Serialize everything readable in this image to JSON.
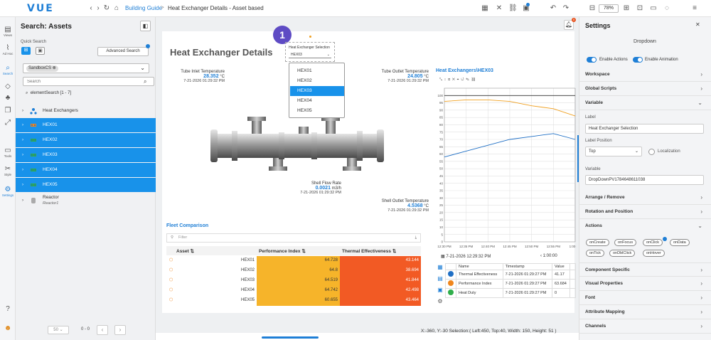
{
  "app": {
    "logo": "VUE"
  },
  "breadcrumb": {
    "home_link": "Building Guide",
    "separator": ">",
    "page": "Heat Exchanger Details - Asset based"
  },
  "toolbar": {
    "zoom": "78%"
  },
  "rail": [
    {
      "label": "Views",
      "icon": "views-icon"
    },
    {
      "label": "Ad Hoc",
      "icon": "adhoc-icon"
    },
    {
      "label": "Search",
      "icon": "search-icon"
    },
    {
      "label": "",
      "icon": "tag-icon"
    },
    {
      "label": "",
      "icon": "hierarchy-icon"
    },
    {
      "label": "",
      "icon": "copy-icon"
    },
    {
      "label": "",
      "icon": "expand-icon"
    },
    {
      "label": "Tools",
      "icon": "tools-icon"
    },
    {
      "label": "Style",
      "icon": "style-icon"
    },
    {
      "label": "Settings",
      "icon": "settings-icon"
    }
  ],
  "search_panel": {
    "title": "Search: Assets",
    "quick_search": "Quick Search",
    "advanced_search": "Advanced Search",
    "scope_chip": "SandboxCS",
    "search_placeholder": "Search",
    "element_search": "elementSearch [1 - 7]",
    "tree": [
      {
        "label": "Heat Exchangers",
        "selected": false
      },
      {
        "label": "HEX01",
        "selected": true
      },
      {
        "label": "HEX02",
        "selected": true
      },
      {
        "label": "HEX03",
        "selected": true
      },
      {
        "label": "HEX04",
        "selected": true
      },
      {
        "label": "HEX05",
        "selected": true
      },
      {
        "label": "Reactor",
        "sub": "Reactor1",
        "selected": false
      }
    ],
    "pager": {
      "size": "50",
      "range": "0 - 0"
    }
  },
  "canvas": {
    "title": "Heat Exchanger Details",
    "badge": "1",
    "notifications_count": "0",
    "dropdown": {
      "label": "Heat Exchanger Selection",
      "value": "HEX03",
      "options": [
        "HEX01",
        "HEX02",
        "HEX03",
        "HEX04",
        "HEX05"
      ],
      "selected_index": 2
    },
    "sensors": {
      "tube_inlet": {
        "label": "Tube Inlet Temperature",
        "value": "28.352",
        "unit": "°C",
        "ts": "7-21-2026 01:29:32 PM"
      },
      "tube_outlet": {
        "label": "Tube Outlet Temperature",
        "value": "24.805",
        "unit": "°C",
        "ts": "7-21-2026 01:29:32 PM"
      },
      "shell_flow": {
        "label": "Shell Flow Rate",
        "value": "0.0021",
        "unit": "m3/h",
        "ts": "7-21-2026 01:29:32 PM"
      },
      "shell_outlet": {
        "label": "Shell Outlet Temperature",
        "value": "4.5368",
        "unit": "°C",
        "ts": "7-21-2026 01:29:32 PM"
      }
    },
    "fleet": {
      "title": "Fleet Comparison",
      "filter_placeholder": "Filter",
      "headers": {
        "asset": "Asset",
        "perf": "Performance Index",
        "thermal": "Thermal Effectiveness"
      },
      "rows": [
        {
          "asset": "HEX01",
          "perf": "64.728",
          "thermal": "43.144"
        },
        {
          "asset": "HEX02",
          "perf": "64.8",
          "thermal": "38.694"
        },
        {
          "asset": "HEX03",
          "perf": "64.519",
          "thermal": "41.844"
        },
        {
          "asset": "HEX04",
          "perf": "64.742",
          "thermal": "42.498"
        },
        {
          "asset": "HEX05",
          "perf": "60.655",
          "thermal": "43.464"
        }
      ]
    },
    "history": {
      "timestamp": "7-21-2026 12:29:32 PM",
      "duration": "1:00:00",
      "headers": [
        "Name",
        "Timestamp",
        "Value",
        ""
      ],
      "rows": [
        {
          "color": "#1f6fc5",
          "name": "Thermal Effectiveness",
          "ts": "7-21-2026 01:29:27 PM",
          "value": "41.17"
        },
        {
          "color": "#f0861c",
          "name": "Performance Index",
          "ts": "7-21-2026 01:29:27 PM",
          "value": "63.684"
        },
        {
          "color": "#2fae4a",
          "name": "Heat Duty",
          "ts": "7-21-2026 01:29:27 PM",
          "value": "0"
        }
      ]
    },
    "status": "X:-360, Y:-30  Selection:( Left:450, Top:40, Width: 150, Height: 51 )"
  },
  "chart_data": {
    "type": "line",
    "title": "Heat Exchangers\\HEX03",
    "x": [
      "12:30 PM",
      "12:35 PM",
      "12:40 PM",
      "12:45 PM",
      "12:50 PM",
      "12:55 PM",
      "1:00 PM"
    ],
    "ylim": [
      0,
      105
    ],
    "yticks": [
      0,
      5,
      10,
      15,
      20,
      25,
      30,
      35,
      40,
      45,
      50,
      55,
      60,
      65,
      70,
      75,
      80,
      85,
      90,
      95,
      100
    ],
    "series": [
      {
        "name": "Performance Index",
        "color": "#f0a020",
        "values": [
          96,
          97,
          97,
          96,
          93,
          91,
          86
        ]
      },
      {
        "name": "Thermal Effectiveness",
        "color": "#1f6fc5",
        "values": [
          58,
          62,
          66,
          70,
          72,
          74,
          70
        ]
      },
      {
        "name": "Heat Duty",
        "color": "#333333",
        "values": [
          100,
          100,
          100,
          100,
          100,
          100,
          100
        ]
      }
    ],
    "grid": true
  },
  "settings": {
    "title": "Settings",
    "component": "Dropdown",
    "enable_actions": "Enable Actions",
    "enable_animation": "Enable Animation",
    "sections_top": [
      "Workspace",
      "Global Scripts",
      "Variable"
    ],
    "label_field": {
      "label": "Label",
      "value": "Heat Exchanger Selection"
    },
    "label_position": {
      "label": "Label Position",
      "value": "Top"
    },
    "localization": "Localization",
    "variable_field": {
      "label": "Variable",
      "value": "DropDownPV1784648611038"
    },
    "sections_mid": [
      "Arrange / Remove",
      "Rotation and Position",
      "Actions"
    ],
    "actions": [
      "onCreate",
      "onFocus",
      "onClick",
      "onData",
      "onTick",
      "onDblClick",
      "onHover"
    ],
    "sections_bottom": [
      "Component Specific",
      "Visual Properties",
      "Font",
      "Attribute Mapping",
      "Channels"
    ]
  }
}
